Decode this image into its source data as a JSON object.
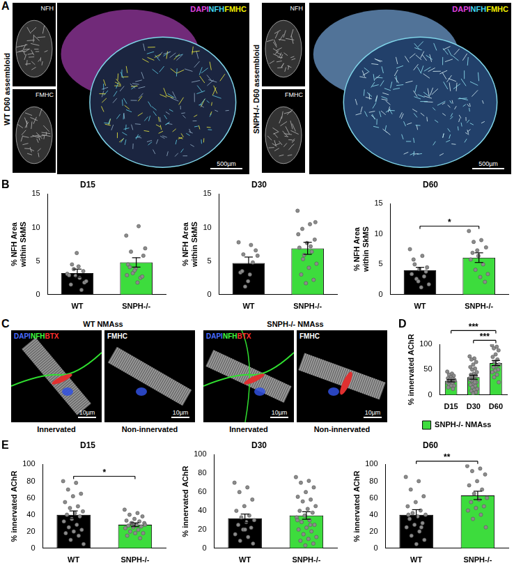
{
  "panel_A": {
    "letter": "A",
    "groups": [
      {
        "label": "WT D60 assembloid",
        "small": [
          "NFH",
          "FMHC"
        ],
        "merged": [
          {
            "text": "DAPI",
            "color": "#e040e0"
          },
          {
            "text": "NFH",
            "color": "#40d8f0"
          },
          {
            "text": "FMHC",
            "color": "#f0f000"
          }
        ],
        "scale_bar": "500µm"
      },
      {
        "label": "SNPH-/- D60 assembloid",
        "small": [
          "NFH",
          "FMHC"
        ],
        "merged": [
          {
            "text": "DAPI",
            "color": "#e040e0"
          },
          {
            "text": "NFH",
            "color": "#40d8f0"
          },
          {
            "text": "FMHC",
            "color": "#f0f000"
          }
        ],
        "scale_bar": "500µm"
      }
    ]
  },
  "panel_C": {
    "letter": "C",
    "groups": [
      {
        "label": "WT NMAss",
        "images": [
          {
            "channels": [
              {
                "text": "DAPI",
                "color": "#4a6cff"
              },
              {
                "text": "NFH",
                "color": "#40ff40"
              },
              {
                "text": "BTX",
                "color": "#ff3030"
              }
            ],
            "caption": "Innervated",
            "scale_bar": "10µm"
          },
          {
            "channels": [
              {
                "text": "FMHC",
                "color": "#ffffff"
              }
            ],
            "caption": "Non-innervated",
            "scale_bar": "10µm"
          }
        ]
      },
      {
        "label": "SNPH-/- NMAss",
        "images": [
          {
            "channels": [
              {
                "text": "DAPI",
                "color": "#4a6cff"
              },
              {
                "text": "NFH",
                "color": "#40ff40"
              },
              {
                "text": "BTX",
                "color": "#ff3030"
              }
            ],
            "caption": "Innervated",
            "scale_bar": "10µm"
          },
          {
            "channels": [
              {
                "text": "FMHC",
                "color": "#ffffff"
              }
            ],
            "caption": "Non-innervated",
            "scale_bar": "10µm"
          }
        ]
      }
    ]
  },
  "chart_data": [
    {
      "type": "bar",
      "panel": "B",
      "title": "D15",
      "y_label": "% NFH Area within SkMS",
      "categories": [
        "WT",
        "SNPH-/-"
      ],
      "values": [
        3.2,
        4.8
      ],
      "errors": [
        0.6,
        0.7
      ],
      "colors": [
        "#000000",
        "#3ddc3d"
      ],
      "points": [
        [
          3.1,
          2.5,
          4.5,
          1.8,
          6.2,
          2.9,
          0.7,
          3.8,
          2.0,
          4.2,
          1.5,
          3.5,
          2.8
        ],
        [
          8.8,
          10.2,
          6.4,
          5.8,
          3.9,
          4.5,
          2.5,
          3.2,
          6.9,
          1.8,
          4.1,
          2.7,
          3.6,
          2.9
        ]
      ],
      "marker": "circle",
      "ylim": [
        0,
        15
      ],
      "yticks": [
        0,
        5,
        10,
        15
      ],
      "grid": false,
      "significance": []
    },
    {
      "type": "bar",
      "panel": "B",
      "title": "D30",
      "y_label": "% NFH Area within SkMS",
      "categories": [
        "WT",
        "SNPH-/-"
      ],
      "values": [
        4.7,
        6.9
      ],
      "errors": [
        0.9,
        0.9
      ],
      "colors": [
        "#000000",
        "#3ddc3d"
      ],
      "points": [
        [
          7.8,
          7.4,
          6.0,
          6.6,
          2.0,
          3.3,
          4.8,
          1.2,
          5.8,
          3.0,
          3.5
        ],
        [
          12.5,
          10.5,
          9.8,
          8.2,
          7.7,
          7.0,
          6.4,
          5.9,
          4.6,
          4.0,
          3.0,
          2.2,
          1.7,
          9.0,
          7.2,
          5.3,
          10.8
        ]
      ],
      "marker": "circle",
      "ylim": [
        0,
        15
      ],
      "yticks": [
        0,
        5,
        10,
        15
      ],
      "grid": false,
      "significance": []
    },
    {
      "type": "bar",
      "panel": "B",
      "title": "D60",
      "y_label": "% NFH Area within SkMS",
      "categories": [
        "WT",
        "SNPH-/-"
      ],
      "values": [
        4.0,
        6.1
      ],
      "errors": [
        0.5,
        0.8
      ],
      "colors": [
        "#000000",
        "#3ddc3d"
      ],
      "points": [
        [
          7.5,
          6.4,
          5.0,
          4.5,
          4.2,
          3.4,
          3.0,
          2.6,
          1.7,
          1.2,
          5.8,
          3.8,
          2.2
        ],
        [
          10.5,
          9.0,
          8.7,
          7.8,
          6.4,
          5.8,
          5.0,
          4.1,
          3.4,
          2.9,
          6.9,
          2.1,
          7.3
        ]
      ],
      "marker": "circle",
      "ylim": [
        0,
        15
      ],
      "yticks": [
        0,
        5,
        10,
        15
      ],
      "grid": false,
      "significance": [
        {
          "from": 0,
          "to": 1,
          "label": "*"
        }
      ]
    },
    {
      "type": "bar",
      "panel": "D",
      "y_label": "% innervated AChR",
      "categories": [
        "D15",
        "D30",
        "D60"
      ],
      "series": [
        {
          "name": "SNPH-/- NMAss",
          "color": "#3ddc3d",
          "values": [
            28,
            35,
            63
          ]
        }
      ],
      "errors": [
        2.2,
        4,
        5
      ],
      "points": [
        [
          46,
          42,
          40,
          38,
          35,
          33,
          32,
          30,
          30,
          28,
          27,
          26,
          25,
          24,
          22,
          20,
          18,
          18,
          15,
          12,
          30,
          28
        ],
        [
          76,
          72,
          70,
          65,
          60,
          55,
          52,
          50,
          45,
          42,
          40,
          38,
          35,
          33,
          30,
          28,
          25,
          22,
          20,
          18,
          15,
          12,
          10,
          8,
          5,
          3,
          30,
          25
        ],
        [
          98,
          95,
          92,
          88,
          80,
          75,
          70,
          65,
          60,
          58,
          55,
          50,
          48,
          45,
          40,
          35,
          25
        ]
      ],
      "marker": "circle",
      "ylim": [
        0,
        100
      ],
      "yticks": [
        0,
        50,
        100
      ],
      "grid": false,
      "legend": "bottom",
      "significance": [
        {
          "from": 1,
          "to": 2,
          "label": "***"
        },
        {
          "from": 0,
          "to": 2,
          "label": "***"
        }
      ]
    },
    {
      "type": "bar",
      "panel": "E",
      "title": "D15",
      "y_label": "% innervated AChR",
      "categories": [
        "WT",
        "SNPH-/-"
      ],
      "values": [
        40,
        28
      ],
      "errors": [
        4.5,
        2.2
      ],
      "colors": [
        "#000000",
        "#3ddc3d"
      ],
      "points": [
        [
          80,
          78,
          70,
          65,
          62,
          55,
          50,
          48,
          44,
          42,
          40,
          38,
          35,
          32,
          28,
          25,
          22,
          20,
          18,
          15,
          10,
          5
        ],
        [
          46,
          42,
          40,
          38,
          35,
          33,
          32,
          30,
          30,
          28,
          27,
          26,
          25,
          24,
          22,
          20,
          18,
          18,
          15,
          12,
          30,
          28
        ]
      ],
      "marker": "circle",
      "ylim": [
        0,
        100
      ],
      "yticks": [
        0,
        20,
        40,
        60,
        80,
        100
      ],
      "grid": false,
      "significance": [
        {
          "from": 0,
          "to": 1,
          "label": "*"
        }
      ]
    },
    {
      "type": "bar",
      "panel": "E",
      "title": "D30",
      "y_label": "% innervated AChR",
      "categories": [
        "WT",
        "SNPH-/-"
      ],
      "values": [
        32,
        35
      ],
      "errors": [
        4.5,
        4
      ],
      "colors": [
        "#000000",
        "#3ddc3d"
      ],
      "points": [
        [
          70,
          65,
          60,
          52,
          45,
          40,
          35,
          33,
          30,
          28,
          25,
          22,
          20,
          15,
          12,
          8,
          5,
          20
        ],
        [
          76,
          72,
          70,
          65,
          60,
          55,
          52,
          50,
          45,
          42,
          40,
          38,
          35,
          33,
          30,
          28,
          25,
          22,
          20,
          18,
          15,
          12,
          10,
          8,
          5,
          3,
          30,
          25
        ]
      ],
      "marker": "circle",
      "ylim": [
        0,
        100
      ],
      "yticks": [
        0,
        20,
        40,
        60,
        80,
        100
      ],
      "grid": false,
      "significance": []
    },
    {
      "type": "bar",
      "panel": "E",
      "title": "D60",
      "y_label": "% innervated AChR",
      "categories": [
        "WT",
        "SNPH-/-"
      ],
      "values": [
        40,
        63
      ],
      "errors": [
        6,
        5
      ],
      "colors": [
        "#000000",
        "#3ddc3d"
      ],
      "points": [
        [
          85,
          80,
          70,
          62,
          55,
          50,
          45,
          42,
          40,
          38,
          35,
          30,
          28,
          25,
          20,
          15,
          10,
          5,
          40,
          25
        ],
        [
          98,
          95,
          92,
          88,
          80,
          75,
          70,
          65,
          60,
          58,
          55,
          50,
          48,
          45,
          40,
          35,
          25
        ]
      ],
      "marker": "circle",
      "ylim": [
        0,
        100
      ],
      "yticks": [
        0,
        20,
        40,
        60,
        80,
        100
      ],
      "grid": false,
      "significance": [
        {
          "from": 0,
          "to": 1,
          "label": "**"
        }
      ]
    }
  ]
}
